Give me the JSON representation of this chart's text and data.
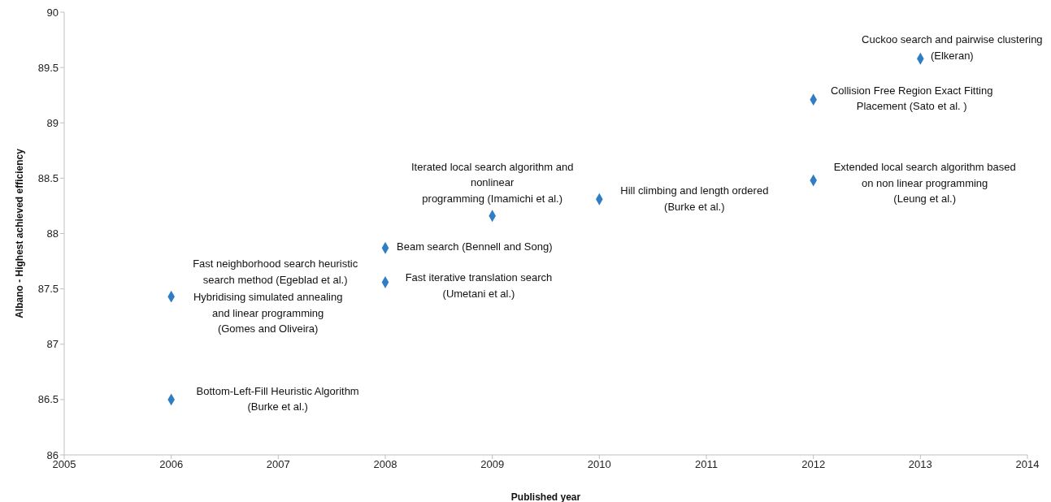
{
  "chart_data": {
    "type": "scatter",
    "xlabel": "Published year",
    "ylabel": "Albano - Highest achieved efficiency",
    "marker": "diamond",
    "xlim": [
      2005,
      2014
    ],
    "xticks": [
      2005,
      2006,
      2007,
      2008,
      2009,
      2010,
      2011,
      2012,
      2013,
      2014
    ],
    "ylim": [
      86,
      90
    ],
    "yticks": [
      86,
      86.5,
      87,
      87.5,
      88,
      88.5,
      89,
      89.5,
      90
    ],
    "series": [
      {
        "color": "#2e7dc5",
        "x": [
          2006,
          2006,
          2008,
          2008,
          2009,
          2010,
          2012,
          2012,
          2013
        ],
        "values": [
          86.5,
          87.43,
          87.87,
          87.56,
          88.16,
          88.31,
          88.48,
          89.21,
          89.58
        ]
      }
    ],
    "annotations": [
      {
        "text": "Bottom-Left-Fill Heuristic Algorithm\n(Burke et al.)",
        "x": 2006,
        "y": 86.5
      },
      {
        "text": "Fast neighborhood search heuristic\nsearch method (Egeblad et al.)",
        "x": 2006,
        "y": 87.43
      },
      {
        "text": "Hybridising simulated annealing\nand linear programming\n(Gomes and Oliveira)",
        "x": 2006,
        "y": 87.43
      },
      {
        "text": "Beam search (Bennell and Song)",
        "x": 2008,
        "y": 87.87
      },
      {
        "text": "Fast iterative translation search\n(Umetani et al.)",
        "x": 2008,
        "y": 87.56
      },
      {
        "text": "Iterated local search algorithm and\nnonlinear\nprogramming (Imamichi et al.)",
        "x": 2009,
        "y": 88.16
      },
      {
        "text": "Hill climbing and length ordered\n(Burke et al.)",
        "x": 2010,
        "y": 88.31
      },
      {
        "text": "Extended local search algorithm based\non non linear programming\n(Leung et al.)",
        "x": 2012,
        "y": 88.48
      },
      {
        "text": "Collision Free Region Exact Fitting\nPlacement (Sato et al. )",
        "x": 2012,
        "y": 89.21
      },
      {
        "text": "Cuckoo search and pairwise clustering\n(Elkeran)",
        "x": 2013,
        "y": 89.58
      }
    ]
  }
}
